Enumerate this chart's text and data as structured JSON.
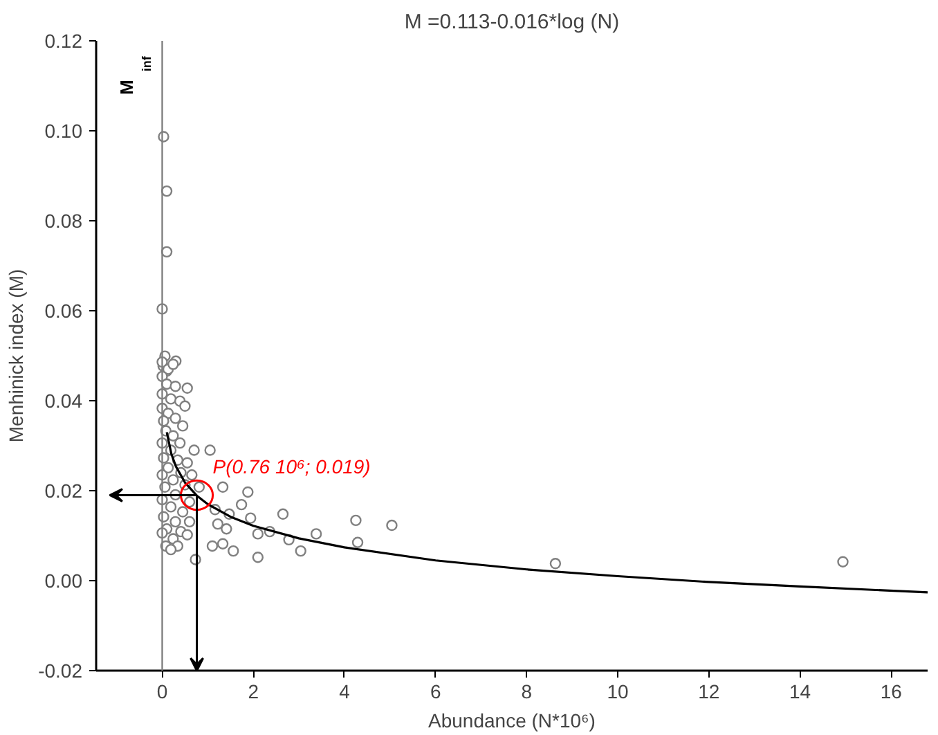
{
  "chart_data": {
    "type": "scatter",
    "title": "M =0.113-0.016*log (N)",
    "xlabel": "Abundance (N*10⁶)",
    "ylabel": "Menhinick index (M)",
    "xlim": [
      -1.45,
      16.8
    ],
    "ylim": [
      -0.02,
      0.12
    ],
    "xticks": [
      0,
      2,
      4,
      6,
      8,
      10,
      12,
      14,
      16
    ],
    "yticks": [
      {
        "value": -0.02,
        "label": "-0.02"
      },
      {
        "value": 0,
        "label": "0.00"
      },
      {
        "value": 0.02,
        "label": "0.02"
      },
      {
        "value": 0.04,
        "label": "0.04"
      },
      {
        "value": 0.06,
        "label": "0.06"
      },
      {
        "value": 0.08,
        "label": "0.08"
      },
      {
        "value": 0.1,
        "label": "0.10"
      },
      {
        "value": 0.12,
        "label": "0.12"
      }
    ],
    "grid": false,
    "marker": "circle",
    "series": [
      {
        "color": "#808080",
        "x": [
          0.03,
          0.1,
          0.1,
          0,
          0.06,
          0.3,
          0.02,
          0.1,
          0.55,
          0,
          0.13,
          0.24,
          0,
          0.1,
          0.29,
          0,
          0.19,
          0.39,
          0,
          0.13,
          0.03,
          0.29,
          0.5,
          0.45,
          0.08,
          0.24,
          0,
          0.39,
          0.19,
          0.7,
          0.03,
          0.34,
          0.55,
          0.13,
          0,
          0.41,
          0.65,
          0.24,
          0.06,
          0.5,
          0.81,
          0.29,
          0,
          0.6,
          0.19,
          0.45,
          0.03,
          0.29,
          0.6,
          0.1,
          0.41,
          0,
          0.24,
          0.55,
          0.08,
          0.34,
          0.19,
          1.05,
          1.33,
          1.88,
          1.74,
          1.94,
          2.65,
          3.38,
          4.25,
          5.04,
          4.29,
          2.78,
          3.04,
          2.1,
          2.36,
          2.1,
          1.56,
          1.33,
          1.1,
          0.73,
          1.41,
          1.22,
          1.47,
          1.16,
          8.63,
          14.94
        ],
        "values": [
          0.0987,
          0.0866,
          0.0731,
          0.0604,
          0.0499,
          0.0488,
          0.0477,
          0.0466,
          0.0428,
          0.0486,
          0.047,
          0.0481,
          0.0454,
          0.0437,
          0.0432,
          0.0415,
          0.0404,
          0.0399,
          0.0383,
          0.0372,
          0.0355,
          0.0361,
          0.0388,
          0.0344,
          0.0333,
          0.0322,
          0.0306,
          0.0306,
          0.029,
          0.029,
          0.0273,
          0.0268,
          0.0262,
          0.0251,
          0.0235,
          0.024,
          0.0235,
          0.0224,
          0.0208,
          0.0213,
          0.0208,
          0.0191,
          0.018,
          0.0175,
          0.0164,
          0.0153,
          0.0142,
          0.0131,
          0.0131,
          0.0115,
          0.0109,
          0.0106,
          0.0093,
          0.0102,
          0.0077,
          0.0077,
          0.0069,
          0.029,
          0.0208,
          0.0197,
          0.0169,
          0.0139,
          0.0148,
          0.0104,
          0.0134,
          0.0123,
          0.0085,
          0.0091,
          0.0066,
          0.0052,
          0.0109,
          0.0104,
          0.0066,
          0.0082,
          0.0077,
          0.0047,
          0.0115,
          0.0126,
          0.0148,
          0.0158,
          0.0038,
          0.0042
        ]
      },
      {
        "type": "line",
        "color": "#000000",
        "marker": "none",
        "x": [
          0.1,
          0.2,
          0.3,
          0.5,
          0.76,
          1,
          1.5,
          2,
          3,
          4,
          6,
          8,
          10,
          12,
          14,
          16.8
        ],
        "values": [
          0.033,
          0.0282,
          0.0254,
          0.0218,
          0.0189,
          0.017,
          0.0142,
          0.0122,
          0.0094,
          0.0074,
          0.0045,
          0.0025,
          0.001,
          -0.0003,
          -0.0013,
          -0.0026
        ]
      }
    ],
    "ref_lines": [
      {
        "axis": "x",
        "value": 0,
        "label": "M$_{inf}$",
        "color": "#808080"
      }
    ],
    "annotations": [
      {
        "text": "P(0.76 10⁶; 0.019)",
        "x": 0.76,
        "y": 0.019
      }
    ]
  }
}
